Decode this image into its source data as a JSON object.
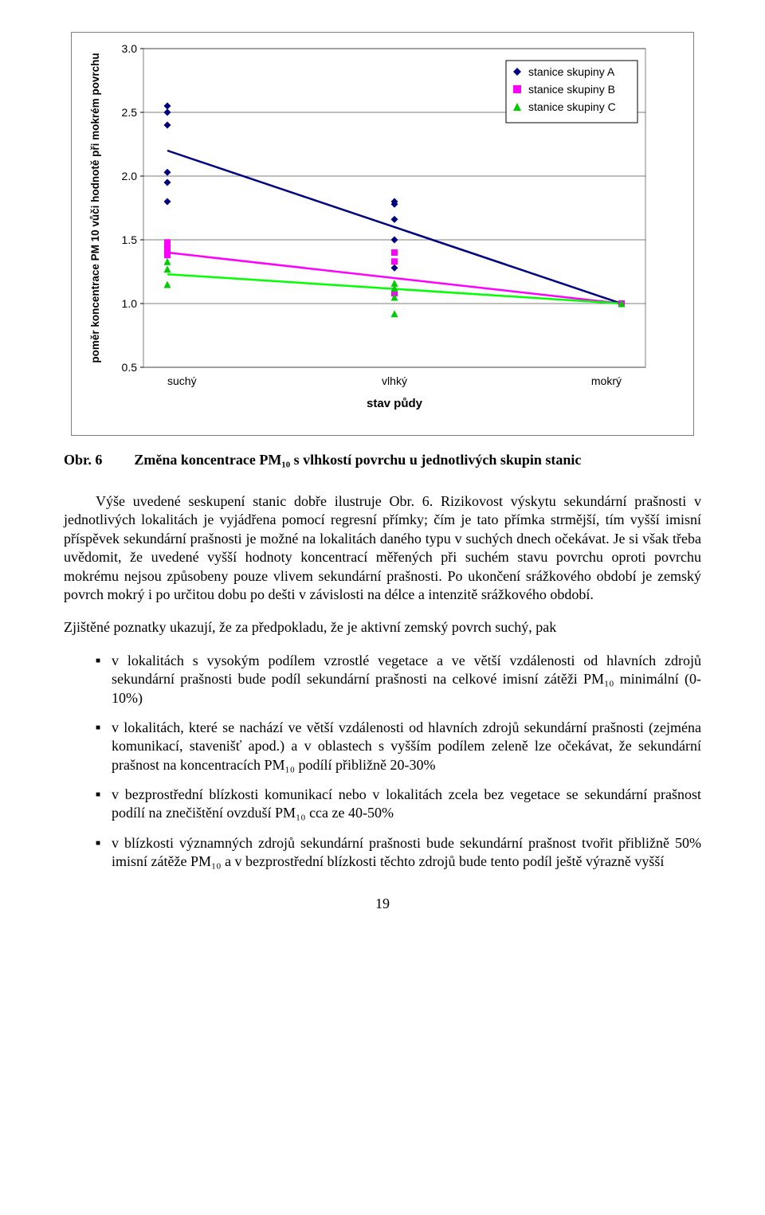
{
  "chart": {
    "type": "scatter+line",
    "background_color": "#ffffff",
    "plot_border_color": "#808080",
    "grid_color": "#000000",
    "axis_font_family": "Arial, Helvetica, sans-serif",
    "axis_fontsize": 14,
    "axis_label_fontsize": 15,
    "axis_label_weight": "bold",
    "x_label": "stav půdy",
    "y_label": "poměr koncentrace PM 10 vůči hodnotě při mokrém povrchu",
    "x_categories": [
      "suchý",
      "vlhký",
      "mokrý"
    ],
    "x_positions": [
      0,
      1,
      2
    ],
    "ylim": [
      0.5,
      3.0
    ],
    "yticks": [
      0.5,
      1.0,
      1.5,
      2.0,
      2.5,
      3.0
    ],
    "ytick_labels": [
      "0.5",
      "1.0",
      "1.5",
      "2.0",
      "2.5",
      "3.0"
    ],
    "legend": {
      "position": "top-right",
      "border_color": "#000000",
      "bg_color": "#ffffff",
      "fontsize": 14,
      "items": [
        {
          "label": "stanice skupiny A",
          "marker": "diamond",
          "color": "#000080"
        },
        {
          "label": "stanice skupiny B",
          "marker": "square",
          "color": "#ff00ff"
        },
        {
          "label": "stanice skupiny C",
          "marker": "triangle",
          "color": "#00cc00"
        }
      ]
    },
    "series": [
      {
        "name": "A",
        "marker": "diamond",
        "marker_size": 9,
        "color": "#000080",
        "points": [
          [
            0,
            2.55
          ],
          [
            0,
            2.5
          ],
          [
            0,
            2.4
          ],
          [
            0,
            2.03
          ],
          [
            0,
            1.95
          ],
          [
            0,
            1.8
          ],
          [
            0,
            1.45
          ],
          [
            0,
            1.4
          ],
          [
            1,
            1.8
          ],
          [
            1,
            1.78
          ],
          [
            1,
            1.66
          ],
          [
            1,
            1.5
          ],
          [
            1,
            1.28
          ],
          [
            2,
            1.0
          ],
          [
            2,
            1.0
          ],
          [
            2,
            1.0
          ]
        ],
        "trend": {
          "color": "#000080",
          "width": 2.5,
          "y_at_x0": 2.2,
          "y_at_x2": 1.0
        }
      },
      {
        "name": "B",
        "marker": "square",
        "marker_size": 8,
        "color": "#ff00ff",
        "points": [
          [
            0,
            1.48
          ],
          [
            0,
            1.44
          ],
          [
            0,
            1.42
          ],
          [
            0,
            1.38
          ],
          [
            1,
            1.4
          ],
          [
            1,
            1.33
          ],
          [
            1,
            1.08
          ],
          [
            2,
            1.0
          ],
          [
            2,
            1.0
          ]
        ],
        "trend": {
          "color": "#ff00ff",
          "width": 2.5,
          "y_at_x0": 1.4,
          "y_at_x2": 1.0
        }
      },
      {
        "name": "C",
        "marker": "triangle",
        "marker_size": 9,
        "color": "#00cc00",
        "points": [
          [
            0,
            1.33
          ],
          [
            0,
            1.27
          ],
          [
            0,
            1.15
          ],
          [
            1,
            1.16
          ],
          [
            1,
            1.12
          ],
          [
            1,
            1.05
          ],
          [
            1,
            0.92
          ],
          [
            2,
            1.0
          ],
          [
            2,
            1.0
          ]
        ],
        "trend": {
          "color": "#00ff00",
          "width": 2.5,
          "y_at_x0": 1.23,
          "y_at_x2": 1.0
        }
      }
    ]
  },
  "caption": {
    "label": "Obr. 6",
    "text": "Změna koncentrace PM₁₀ s vlhkostí povrchu u jednotlivých skupin stanic"
  },
  "para1": "Výše uvedené seskupení stanic dobře ilustruje Obr. 6. Rizikovost výskytu sekundární prašnosti v jednotlivých lokalitách je vyjádřena pomocí regresní přímky; čím je tato přímka strmější, tím vyšší imisní příspěvek sekundární prašnosti je možné na lokalitách daného typu v suchých dnech očekávat. Je si však třeba uvědomit, že uvedené vyšší hodnoty koncentrací měřených při suchém stavu povrchu oproti povrchu mokrému nejsou způsobeny pouze vlivem sekundární prašnosti. Po ukončení srážkového období je zemský povrch mokrý i po určitou dobu po dešti v závislosti na délce a intenzitě srážkového období.",
  "para2": "Zjištěné poznatky ukazují, že za předpokladu, že je aktivní zemský povrch suchý, pak",
  "bullets": [
    "v lokalitách s vysokým podílem vzrostlé vegetace a ve větší vzdálenosti od hlavních zdrojů sekundární prašnosti bude podíl sekundární prašnosti na celkové imisní zátěži PM₁₀ minimální (0-10%)",
    "v lokalitách, které se nachází ve větší vzdálenosti od hlavních zdrojů sekundární prašnosti (zejména komunikací, stavenišť apod.) a v oblastech s vyšším podílem zeleně lze očekávat, že sekundární prašnost na koncentracích PM₁₀ podílí přibližně 20-30%",
    "v bezprostřední blízkosti komunikací nebo v lokalitách zcela bez vegetace se sekundární prašnost podílí na znečištění ovzduší PM₁₀ cca ze 40-50%",
    "v blízkosti významných zdrojů sekundární prašnosti bude sekundární prašnost tvořit přibližně 50% imisní zátěže PM₁₀ a v bezprostřední blízkosti těchto zdrojů bude tento podíl ještě výrazně vyšší"
  ],
  "page_number": "19"
}
